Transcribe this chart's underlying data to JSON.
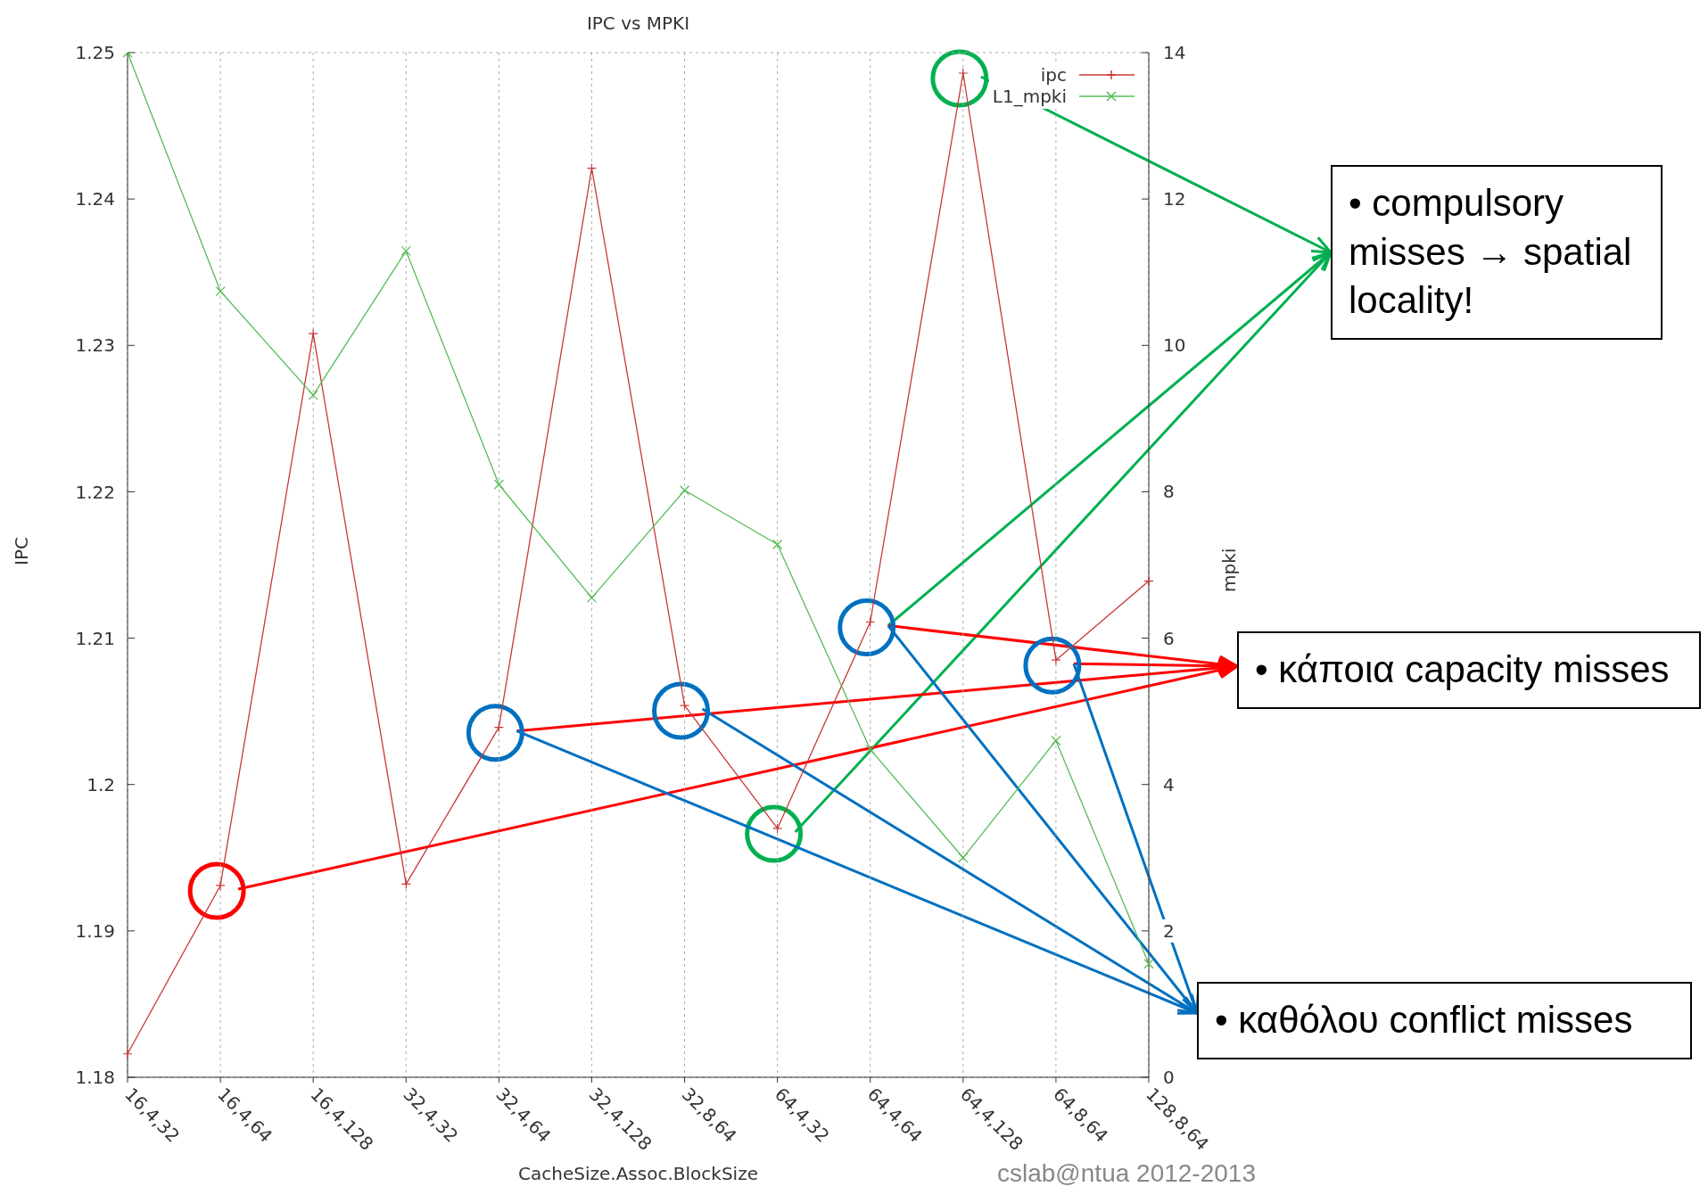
{
  "chart_data": {
    "type": "line",
    "title": "IPC vs MPKI",
    "xlabel": "CacheSize.Assoc.BlockSize",
    "ylabel": "IPC",
    "y2label": "mpki",
    "categories": [
      "16,4,32",
      "16,4,64",
      "16,4,128",
      "32,4,32",
      "32,4,64",
      "32,4,128",
      "32,8,64",
      "64,4,32",
      "64,4,64",
      "64,4,128",
      "64,8,64",
      "128,8,64"
    ],
    "series": [
      {
        "name": "ipc",
        "color": "#c83737",
        "marker": "plus",
        "values": [
          1.1816,
          1.1931,
          1.2308,
          1.1932,
          1.2039,
          1.2421,
          1.2054,
          1.197,
          1.2111,
          1.2486,
          1.2085,
          1.2139
        ]
      },
      {
        "name": "L1_mpki",
        "color": "#55bb55",
        "marker": "cross",
        "axis": "y2",
        "values": [
          14.0,
          10.74,
          9.32,
          11.29,
          8.1,
          6.55,
          8.02,
          7.28,
          4.48,
          3.0,
          4.6,
          1.55
        ]
      }
    ],
    "ylim": [
      1.18,
      1.25
    ],
    "yticks": [
      1.18,
      1.19,
      1.2,
      1.21,
      1.22,
      1.23,
      1.24,
      1.25
    ],
    "y2lim": [
      0,
      14
    ],
    "y2ticks": [
      0,
      2,
      4,
      6,
      8,
      10,
      12,
      14
    ],
    "grid": true,
    "legend": "top right",
    "annotations": [
      "• compulsory misses → spatial locality!",
      "• κάποια capacity misses",
      "• καθόλου conflict misses",
      "cslab@ntua 2012-2013"
    ]
  }
}
